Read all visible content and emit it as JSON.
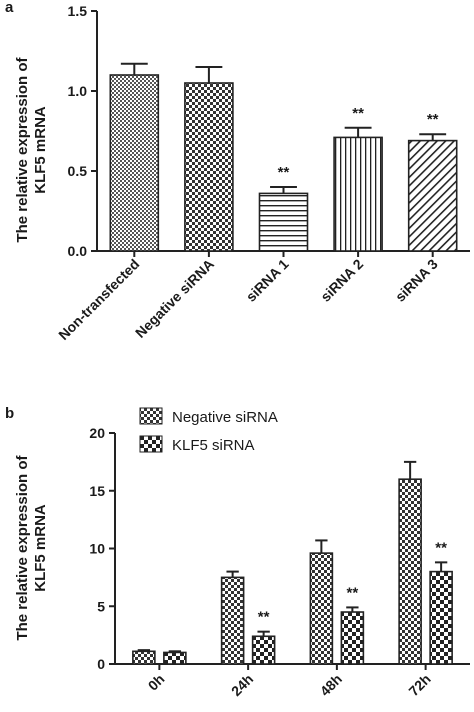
{
  "chart_data": [
    {
      "panel_label": "a",
      "type": "bar",
      "categories": [
        "Non-transfected",
        "Negative siRNA",
        "siRNA 1",
        "siRNA 2",
        "siRNA 3"
      ],
      "values": [
        1.1,
        1.05,
        0.36,
        0.71,
        0.69
      ],
      "errors": [
        0.07,
        0.1,
        0.04,
        0.06,
        0.04
      ],
      "significance": [
        "",
        "",
        "**",
        "**",
        "**"
      ],
      "patterns": [
        "dense-check",
        "check",
        "h-lines",
        "v-lines",
        "diagonal"
      ],
      "ylabel_line1": "The relative expression of",
      "ylabel_line2": "KLF5 mRNA",
      "ylim": [
        0,
        1.5
      ],
      "yticks": [
        0,
        0.5,
        1.0,
        1.5
      ],
      "ytick_labels": [
        "0.0",
        "0.5",
        "1.0",
        "1.5"
      ],
      "grid": false,
      "legend": "none"
    },
    {
      "panel_label": "b",
      "type": "bar",
      "categories": [
        "0h",
        "24h",
        "48h",
        "72h"
      ],
      "series": [
        {
          "name": "Negative siRNA",
          "values": [
            1.1,
            7.5,
            9.6,
            16.0
          ],
          "errors": [
            0.1,
            0.5,
            1.1,
            1.5
          ],
          "significance": [
            "",
            "",
            "",
            ""
          ],
          "pattern": "check"
        },
        {
          "name": "KLF5 siRNA",
          "values": [
            1.0,
            2.4,
            4.5,
            8.0
          ],
          "errors": [
            0.1,
            0.4,
            0.4,
            0.8
          ],
          "significance": [
            "",
            "**",
            "**",
            "**"
          ],
          "pattern": "large-check"
        }
      ],
      "ylabel_line1": "The relative expression of",
      "ylabel_line2": "KLF5 mRNA",
      "ylim": [
        0,
        20
      ],
      "yticks": [
        0,
        5,
        10,
        15,
        20
      ],
      "ytick_labels": [
        "0",
        "5",
        "10",
        "15",
        "20"
      ],
      "grid": false,
      "legend": "top-left"
    }
  ]
}
